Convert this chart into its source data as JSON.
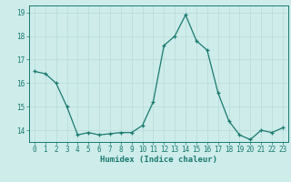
{
  "x": [
    0,
    1,
    2,
    3,
    4,
    5,
    6,
    7,
    8,
    9,
    10,
    11,
    12,
    13,
    14,
    15,
    16,
    17,
    18,
    19,
    20,
    21,
    22,
    23
  ],
  "y": [
    16.5,
    16.4,
    16.0,
    15.0,
    13.8,
    13.9,
    13.8,
    13.85,
    13.9,
    13.9,
    14.2,
    15.2,
    17.6,
    18.0,
    18.9,
    17.8,
    17.4,
    15.6,
    14.4,
    13.8,
    13.6,
    14.0,
    13.9,
    14.1
  ],
  "xlabel": "Humidex (Indice chaleur)",
  "ylim": [
    13.5,
    19.3
  ],
  "xlim": [
    -0.5,
    23.5
  ],
  "yticks": [
    14,
    15,
    16,
    17,
    18,
    19
  ],
  "xticks": [
    0,
    1,
    2,
    3,
    4,
    5,
    6,
    7,
    8,
    9,
    10,
    11,
    12,
    13,
    14,
    15,
    16,
    17,
    18,
    19,
    20,
    21,
    22,
    23
  ],
  "line_color": "#1a7a6e",
  "marker_color": "#1a7a6e",
  "bg_color": "#cdecea",
  "grid_color": "#b8dbd8",
  "axis_color": "#1a7a6e",
  "xlabel_fontsize": 6.5,
  "tick_fontsize": 5.5,
  "ylabel_fontsize": 6
}
